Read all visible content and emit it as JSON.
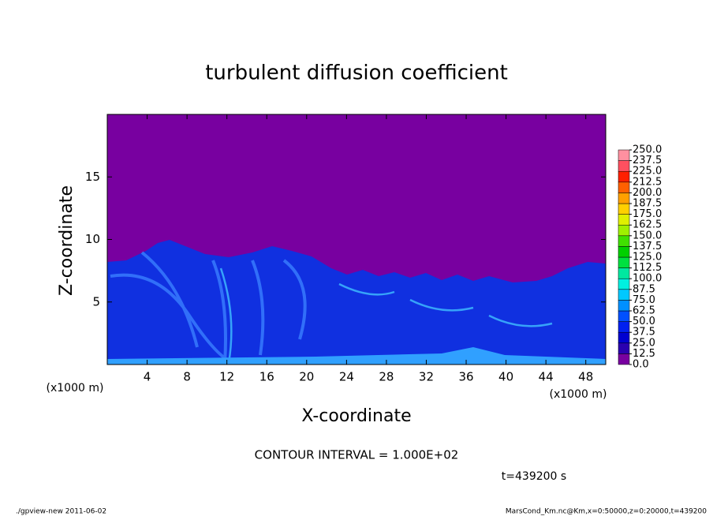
{
  "chart_data": {
    "type": "contour",
    "title": "turbulent diffusion coefficient",
    "xlabel": "X-coordinate",
    "ylabel": "Z-coordinate",
    "xunit": "(x1000 m)",
    "yunit": "(x1000 m)",
    "xlim": [
      0,
      50
    ],
    "ylim": [
      0,
      20
    ],
    "xticks": [
      4,
      8,
      12,
      16,
      20,
      24,
      28,
      32,
      36,
      40,
      44,
      48
    ],
    "yticks": [
      5,
      10,
      15
    ],
    "background_color": "#7800a0",
    "colorbar": {
      "levels": [
        {
          "value": 0,
          "label": "0.0"
        },
        {
          "value": 12.5,
          "label": "12.5"
        },
        {
          "value": 25,
          "label": "25.0"
        },
        {
          "value": 37.5,
          "label": "37.5"
        },
        {
          "value": 50,
          "label": "50.0"
        },
        {
          "value": 62.5,
          "label": "62.5"
        },
        {
          "value": 75,
          "label": "75.0"
        },
        {
          "value": 87.5,
          "label": "87.5"
        },
        {
          "value": 100,
          "label": "100.0"
        },
        {
          "value": 112.5,
          "label": "112.5"
        },
        {
          "value": 125,
          "label": "125.0"
        },
        {
          "value": 137.5,
          "label": "137.5"
        },
        {
          "value": 150,
          "label": "150.0"
        },
        {
          "value": 162.5,
          "label": "162.5"
        },
        {
          "value": 175,
          "label": "175.0"
        },
        {
          "value": 187.5,
          "label": "187.5"
        },
        {
          "value": 200,
          "label": "200.0"
        },
        {
          "value": 212.5,
          "label": "212.5"
        },
        {
          "value": 225,
          "label": "225.0"
        },
        {
          "value": 237.5,
          "label": "237.5"
        },
        {
          "value": 250,
          "label": "250.0"
        }
      ],
      "colors": [
        "#7800a0",
        "#2a00b0",
        "#0000d0",
        "#0020f0",
        "#0050ff",
        "#0090ff",
        "#00c8ff",
        "#00f0e0",
        "#00e8a0",
        "#00e040",
        "#00d000",
        "#40e000",
        "#a0f000",
        "#e0f000",
        "#ffd000",
        "#ffa000",
        "#ff6000",
        "#ff2000",
        "#ff5060",
        "#ff90a0"
      ]
    },
    "contour_interval": "CONTOUR INTERVAL = 1.000E+02",
    "time": "t=439200 s",
    "footer_left": "./gpview-new   2011-06-02",
    "footer_right": "MarsCond_Km.nc@Km,x=0:50000,z=0:20000,t=439200"
  }
}
